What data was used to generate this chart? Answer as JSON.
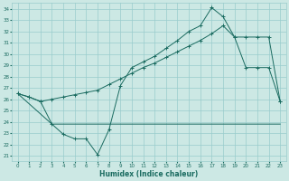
{
  "xlabel": "Humidex (Indice chaleur)",
  "background_color": "#cce8e4",
  "grid_color": "#99cccc",
  "line_color": "#1a6b60",
  "xlim": [
    -0.5,
    23.5
  ],
  "ylim": [
    20.5,
    34.5
  ],
  "yticks": [
    21,
    22,
    23,
    24,
    25,
    26,
    27,
    28,
    29,
    30,
    31,
    32,
    33,
    34
  ],
  "xticks": [
    0,
    1,
    2,
    3,
    4,
    5,
    6,
    7,
    8,
    9,
    10,
    11,
    12,
    13,
    14,
    15,
    16,
    17,
    18,
    19,
    20,
    21,
    22,
    23
  ],
  "line1_zigzag": {
    "x": [
      0,
      1,
      2,
      3,
      4,
      5,
      6,
      7,
      8,
      9,
      10,
      11,
      12,
      13,
      14,
      15,
      16,
      17,
      18,
      19,
      20,
      21,
      22,
      23
    ],
    "y": [
      26.5,
      26.2,
      25.8,
      23.8,
      22.9,
      22.5,
      22.5,
      21.1,
      23.3,
      27.2,
      28.8,
      29.3,
      29.8,
      30.5,
      31.2,
      32.0,
      32.5,
      34.1,
      33.3,
      31.5,
      28.8,
      28.8,
      28.8,
      25.8
    ]
  },
  "line2_smooth": {
    "x": [
      0,
      1,
      2,
      3,
      4,
      5,
      6,
      7,
      8,
      9,
      10,
      11,
      12,
      13,
      14,
      15,
      16,
      17,
      18,
      19,
      20,
      21,
      22,
      23
    ],
    "y": [
      26.5,
      26.2,
      25.8,
      26.0,
      26.2,
      26.4,
      26.6,
      26.8,
      27.3,
      27.8,
      28.3,
      28.8,
      29.2,
      29.7,
      30.2,
      30.7,
      31.2,
      31.8,
      32.5,
      31.5,
      31.5,
      31.5,
      31.5,
      25.8
    ]
  },
  "line3_flat": {
    "x": [
      0,
      3,
      23
    ],
    "y": [
      26.5,
      23.8,
      23.8
    ]
  }
}
